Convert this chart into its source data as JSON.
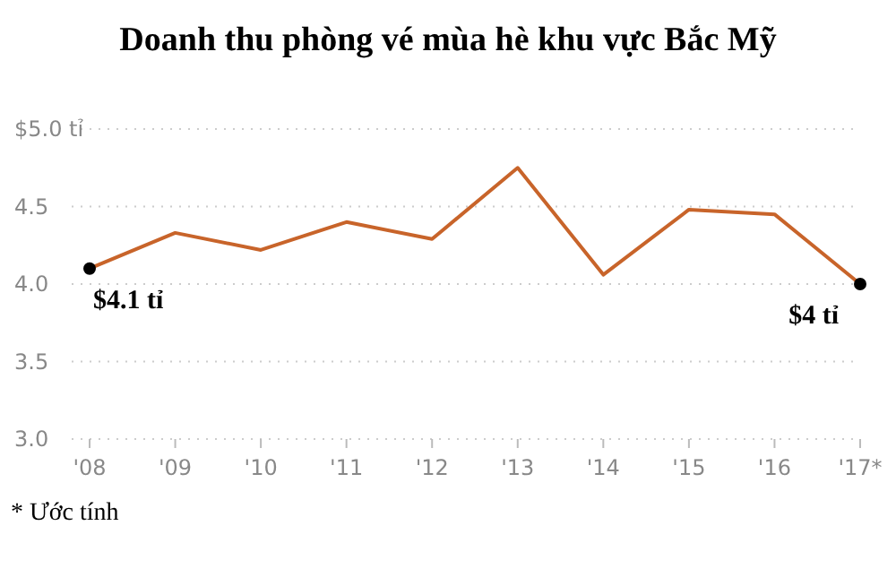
{
  "chart_data": {
    "type": "line",
    "title": "Doanh thu phòng vé mùa hè khu vực Bắc Mỹ",
    "categories": [
      "'08",
      "'09",
      "'10",
      "'11",
      "'12",
      "'13",
      "'14",
      "'15",
      "'16",
      "'17*"
    ],
    "series": [
      {
        "color": "#c8642a",
        "values": [
          4.1,
          4.33,
          4.22,
          4.4,
          4.29,
          4.75,
          4.06,
          4.48,
          4.45,
          4
        ],
        "value_labels": [
          "$4.1 tỉ",
          null,
          null,
          null,
          null,
          null,
          null,
          null,
          null,
          "$4 tỉ"
        ]
      }
    ],
    "ylim": [
      3,
      5
    ],
    "yticks": [
      {
        "value": 3,
        "label": "3.0"
      },
      3.5,
      {
        "value": 4,
        "label": "4.0"
      },
      4.5,
      {
        "value": 5,
        "label": "$5.0 tỉ"
      }
    ],
    "grid": "y",
    "line_style": "solid",
    "marker": "none",
    "annotations": [
      "* Ước tính"
    ]
  }
}
